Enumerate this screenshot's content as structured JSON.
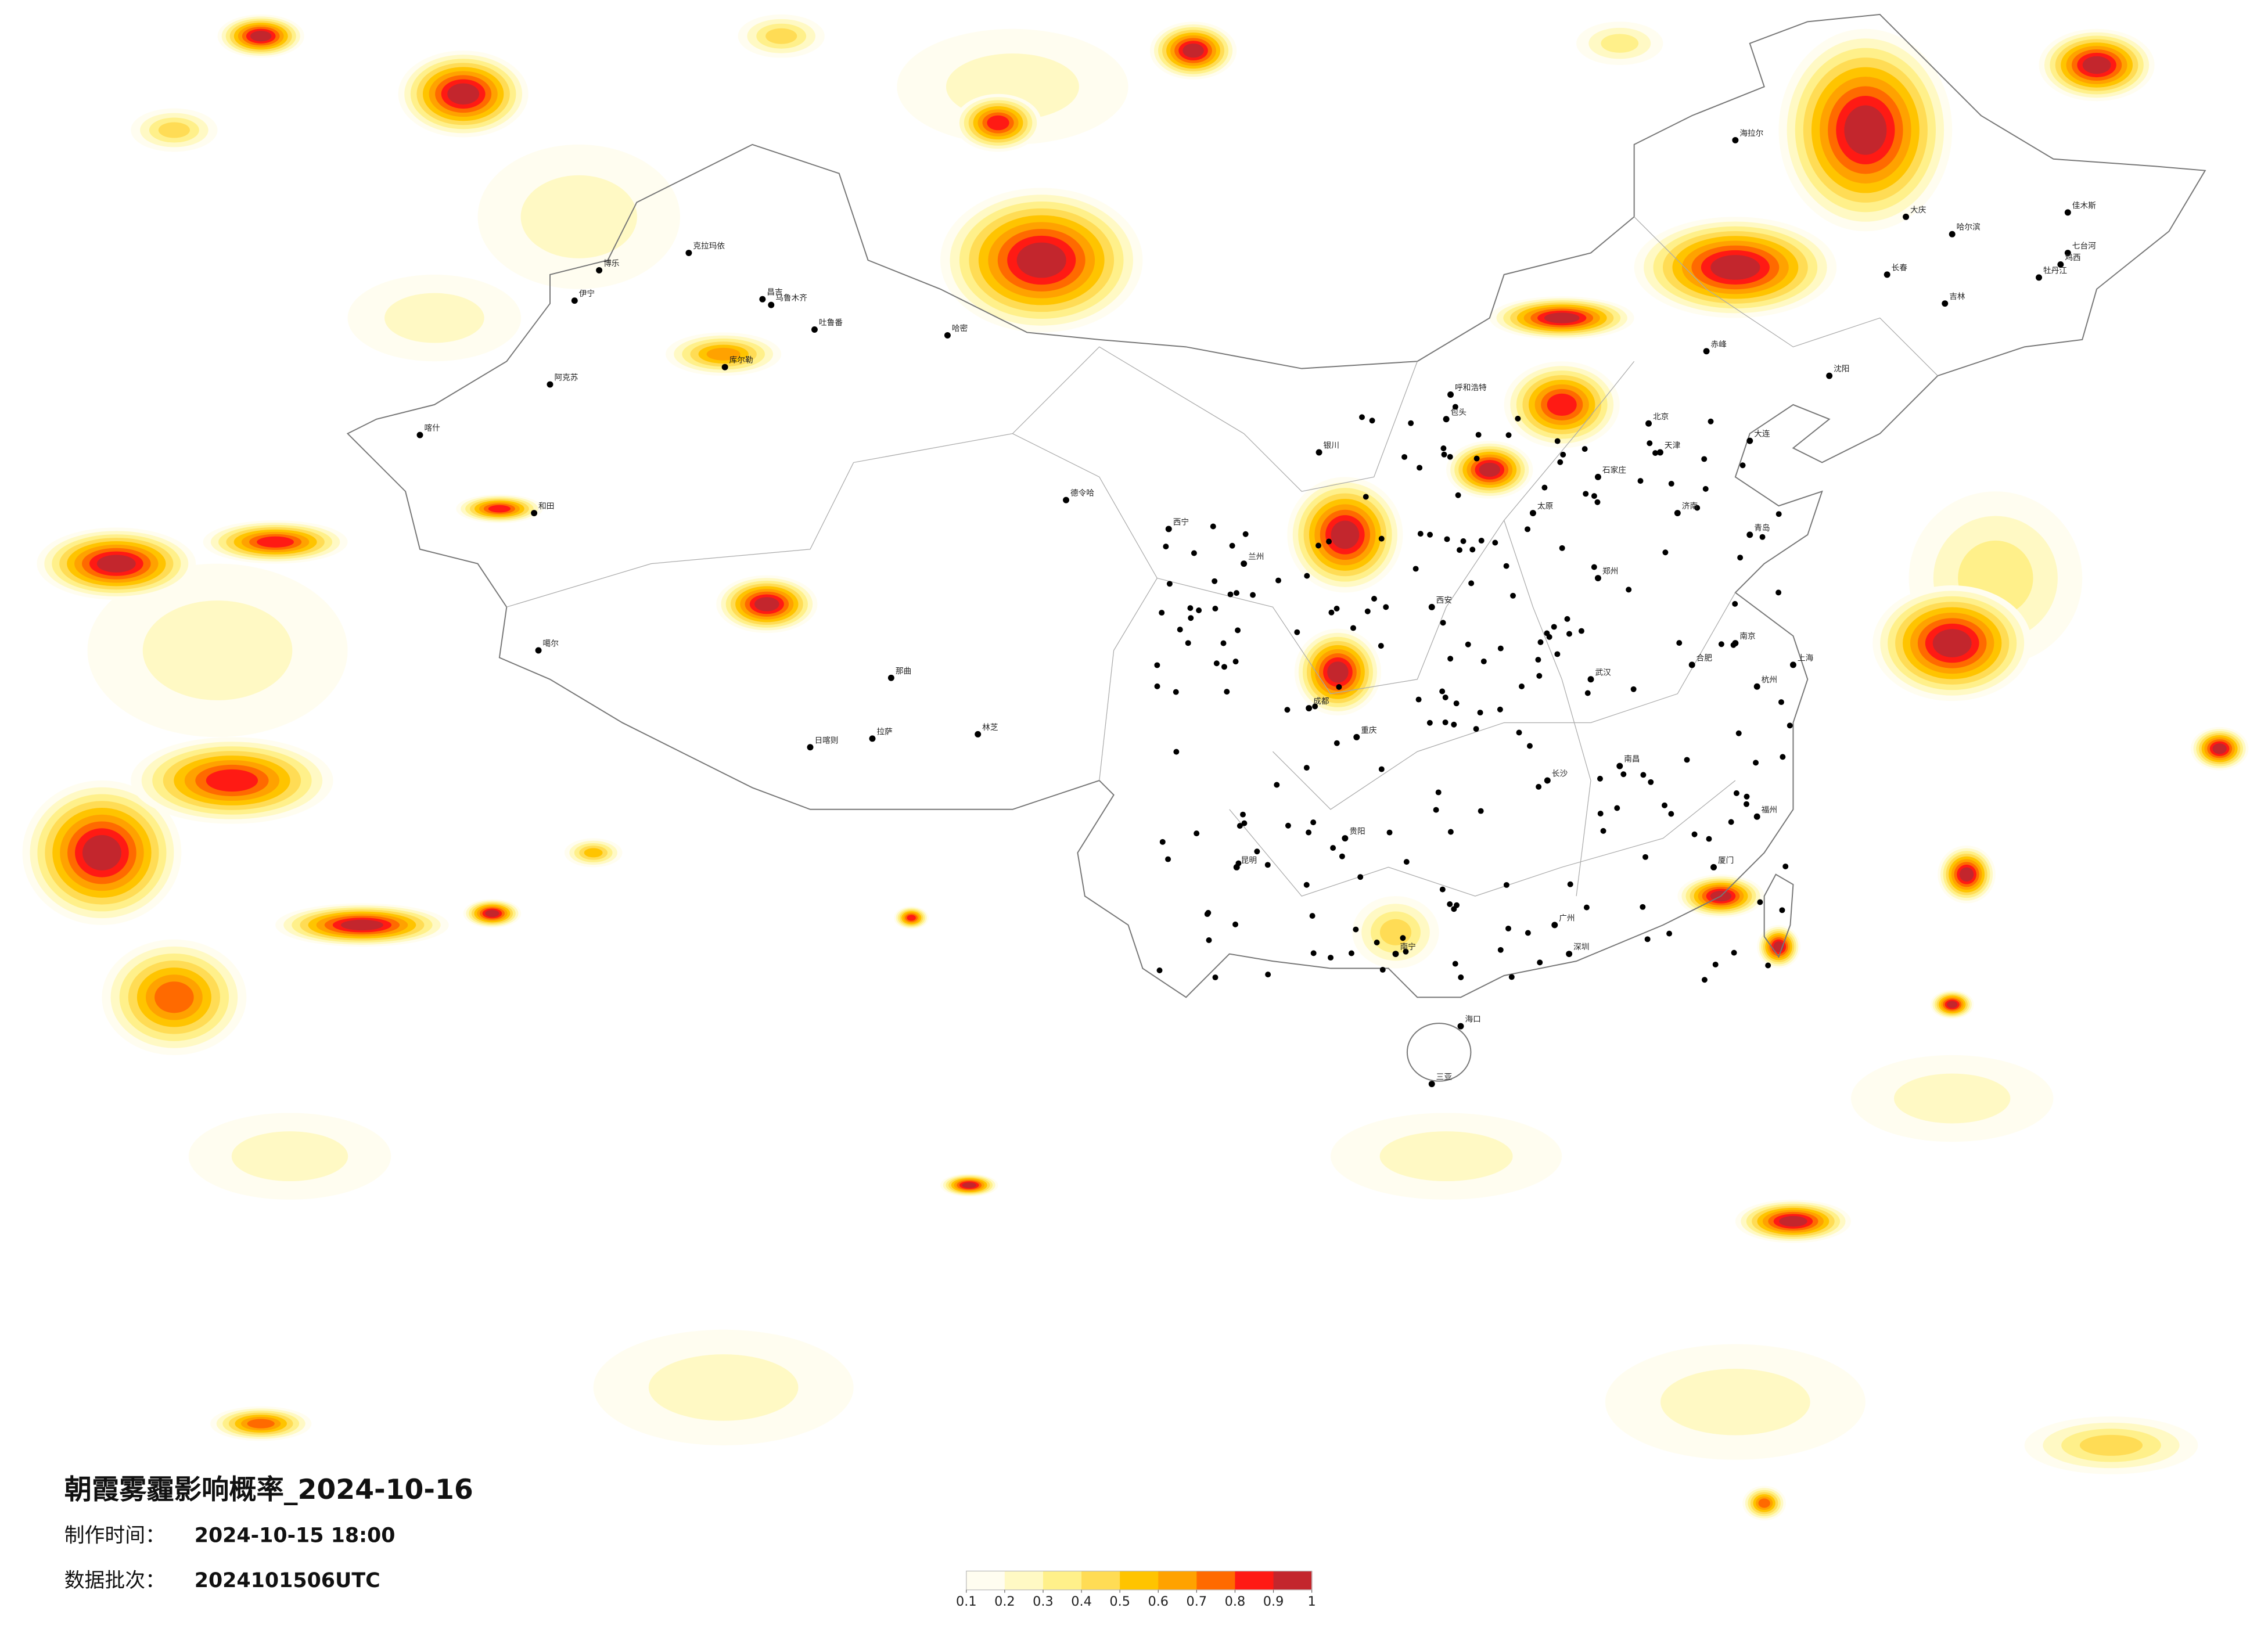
{
  "header": {
    "title": "朝霞雾霾影响概率_2024-10-16"
  },
  "info": [
    {
      "label": "制作时间：",
      "value": "2024-10-15 18:00"
    },
    {
      "label": "数据批次：",
      "value": "2024101506UTC"
    }
  ],
  "legend": {
    "colors": [
      "#fffdf0",
      "#fff9c4",
      "#fff08a",
      "#ffdc55",
      "#ffc400",
      "#ffa200",
      "#ff6a00",
      "#ff1a14",
      "#c3262d"
    ],
    "ticks": [
      0.1,
      0.2,
      0.3,
      0.4,
      0.5,
      0.6,
      0.7,
      0.8,
      0.9,
      1
    ]
  },
  "cities": [
    "克拉玛依",
    "伊宁",
    "博乐",
    "昌吉",
    "乌鲁木齐",
    "吐鲁番",
    "哈密",
    "库尔勒",
    "阿克苏",
    "喀什",
    "和田",
    "噶尔",
    "日喀则",
    "拉萨",
    "林芝",
    "那曲",
    "德令哈",
    "西宁",
    "兰州",
    "银川",
    "呼和浩特",
    "包头",
    "北京",
    "天津",
    "石家庄",
    "太原",
    "济南",
    "郑州",
    "西安",
    "成都",
    "重庆",
    "武汉",
    "长沙",
    "南昌",
    "南京",
    "上海",
    "杭州",
    "合肥",
    "福州",
    "厦门",
    "广州",
    "深圳",
    "南宁",
    "海口",
    "三亚",
    "贵阳",
    "昆明",
    "海拉尔",
    "哈尔滨",
    "长春",
    "沈阳",
    "大连",
    "青岛",
    "吉林",
    "大庆",
    "佳木斯",
    "牡丹江",
    "赤峰",
    "七台河",
    "鸡西"
  ]
}
